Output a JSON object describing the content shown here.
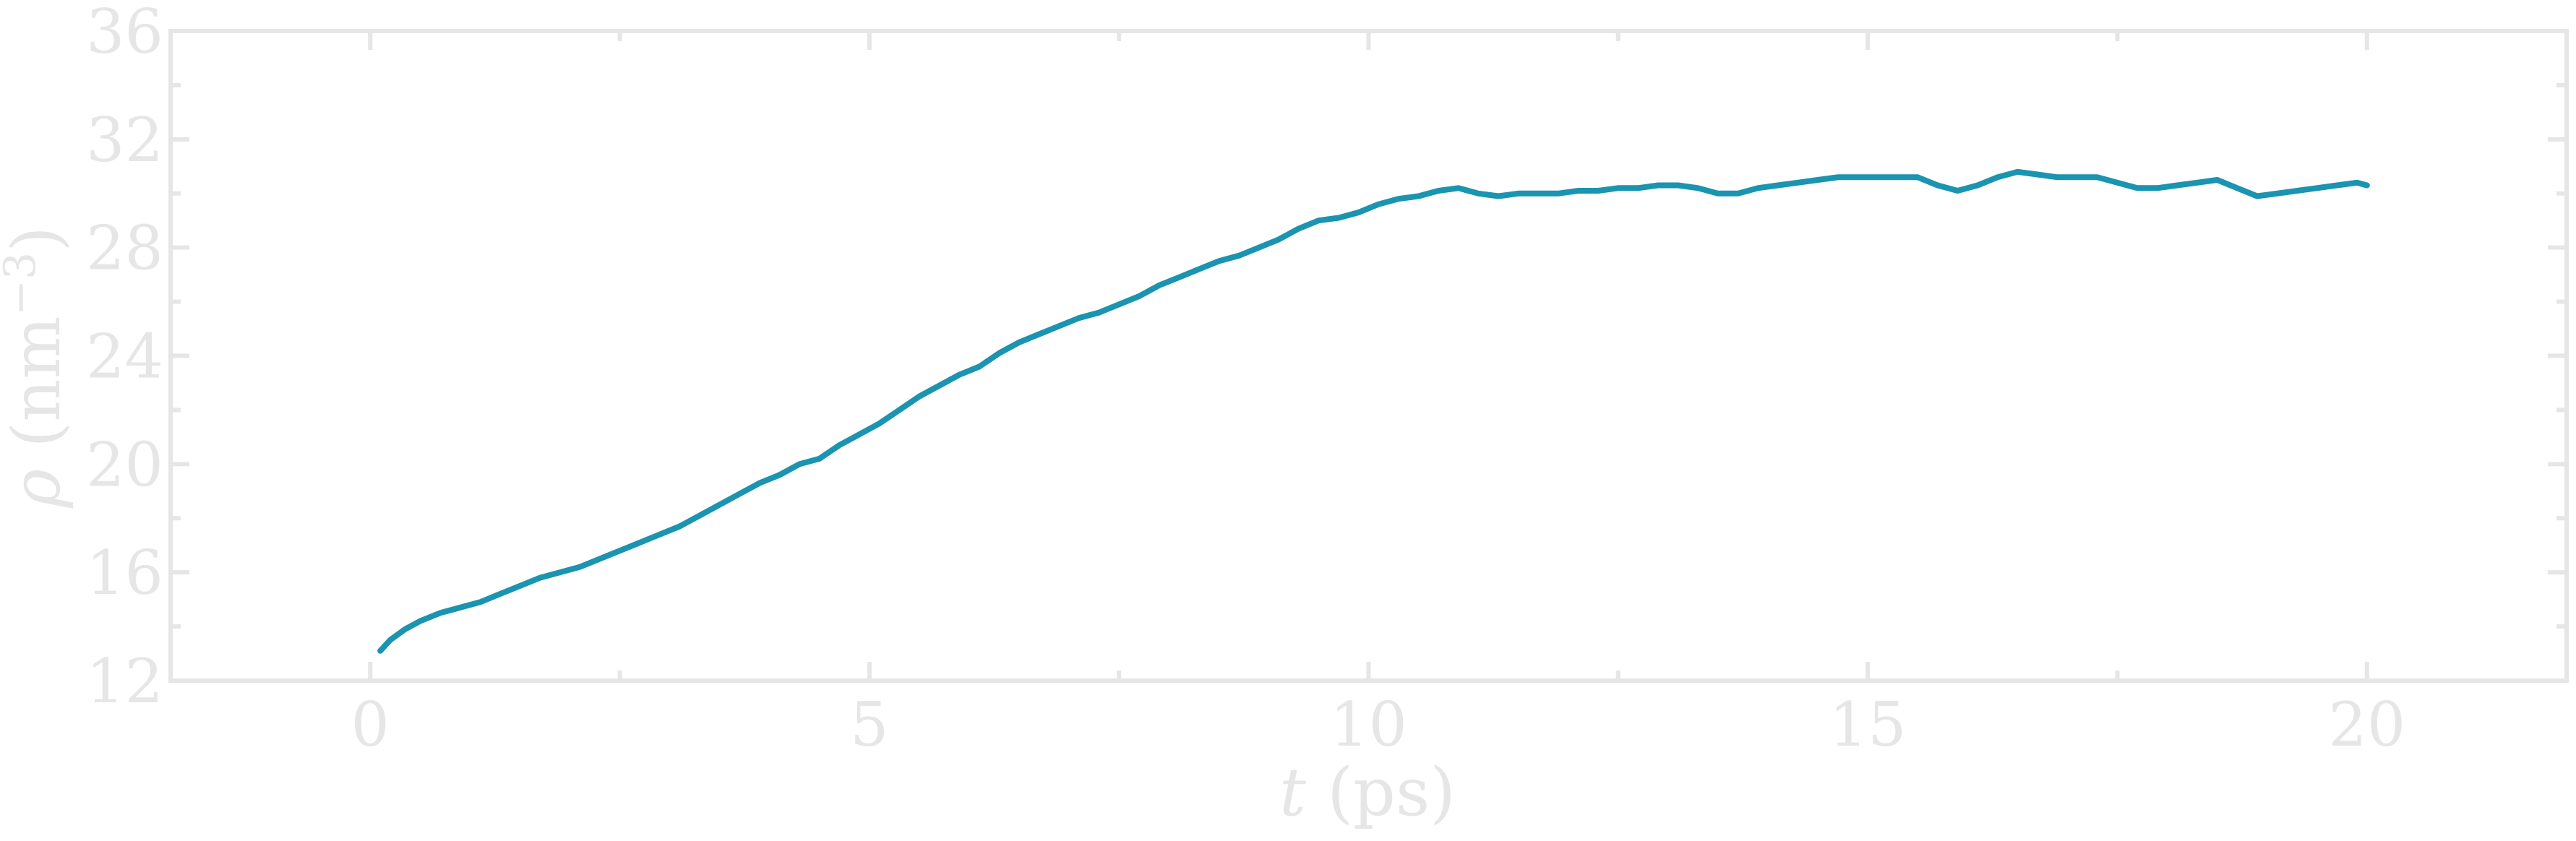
{
  "colors": {
    "series": "#1a94b0",
    "axis": "#e6e6e6",
    "text": "#e6e6e6",
    "background": "#ffffff"
  },
  "chart_data": {
    "type": "line",
    "xlabel": {
      "var": "t",
      "unit": " (ps)"
    },
    "ylabel": {
      "var": "ρ",
      "unit": " (nm",
      "sup": "−3",
      "close": ")"
    },
    "xlim": [
      -2,
      22
    ],
    "ylim": [
      12,
      36
    ],
    "xticks": [
      0,
      5,
      10,
      15,
      20
    ],
    "xtick_labels": [
      "0",
      "5",
      "10",
      "15",
      "20"
    ],
    "xminor": [
      2.5,
      7.5,
      12.5,
      17.5
    ],
    "yticks": [
      12,
      16,
      20,
      24,
      28,
      32,
      36
    ],
    "ytick_labels": [
      "12",
      "16",
      "20",
      "24",
      "28",
      "32",
      "36"
    ],
    "yminor": [
      14,
      18,
      22,
      26,
      30,
      34
    ],
    "grid": false,
    "legend": false,
    "series": [
      {
        "x": [
          0.1,
          0.2,
          0.35,
          0.5,
          0.7,
          0.9,
          1.1,
          1.3,
          1.5,
          1.7,
          1.9,
          2.1,
          2.3,
          2.5,
          2.7,
          2.9,
          3.1,
          3.3,
          3.5,
          3.7,
          3.9,
          4.1,
          4.3,
          4.5,
          4.7,
          4.9,
          5.1,
          5.3,
          5.5,
          5.7,
          5.9,
          6.1,
          6.3,
          6.5,
          6.7,
          6.9,
          7.1,
          7.3,
          7.5,
          7.7,
          7.9,
          8.1,
          8.3,
          8.5,
          8.7,
          8.9,
          9.1,
          9.3,
          9.5,
          9.7,
          9.9,
          10.1,
          10.3,
          10.5,
          10.7,
          10.9,
          11.1,
          11.3,
          11.5,
          11.7,
          11.9,
          12.1,
          12.3,
          12.5,
          12.7,
          12.9,
          13.1,
          13.3,
          13.5,
          13.7,
          13.9,
          14.1,
          14.3,
          14.5,
          14.7,
          14.9,
          15.1,
          15.3,
          15.5,
          15.7,
          15.9,
          16.1,
          16.3,
          16.5,
          16.7,
          16.9,
          17.1,
          17.3,
          17.5,
          17.7,
          17.9,
          18.1,
          18.3,
          18.5,
          18.7,
          18.9,
          19.1,
          19.3,
          19.5,
          19.7,
          19.9,
          20.0
        ],
        "y": [
          13.1,
          13.5,
          13.9,
          14.2,
          14.5,
          14.7,
          14.9,
          15.2,
          15.5,
          15.8,
          16.0,
          16.2,
          16.5,
          16.8,
          17.1,
          17.4,
          17.7,
          18.1,
          18.5,
          18.9,
          19.3,
          19.6,
          20.0,
          20.2,
          20.7,
          21.1,
          21.5,
          22.0,
          22.5,
          22.9,
          23.3,
          23.6,
          24.1,
          24.5,
          24.8,
          25.1,
          25.4,
          25.6,
          25.9,
          26.2,
          26.6,
          26.9,
          27.2,
          27.5,
          27.7,
          28.0,
          28.3,
          28.7,
          29.0,
          29.1,
          29.3,
          29.6,
          29.8,
          29.9,
          30.1,
          30.2,
          30.0,
          29.9,
          30.0,
          30.0,
          30.0,
          30.1,
          30.1,
          30.2,
          30.2,
          30.3,
          30.3,
          30.2,
          30.0,
          30.0,
          30.2,
          30.3,
          30.4,
          30.5,
          30.6,
          30.6,
          30.6,
          30.6,
          30.6,
          30.3,
          30.1,
          30.3,
          30.6,
          30.8,
          30.7,
          30.6,
          30.6,
          30.6,
          30.4,
          30.2,
          30.2,
          30.3,
          30.4,
          30.5,
          30.2,
          29.9,
          30.0,
          30.1,
          30.2,
          30.3,
          30.4,
          30.3
        ]
      }
    ]
  }
}
